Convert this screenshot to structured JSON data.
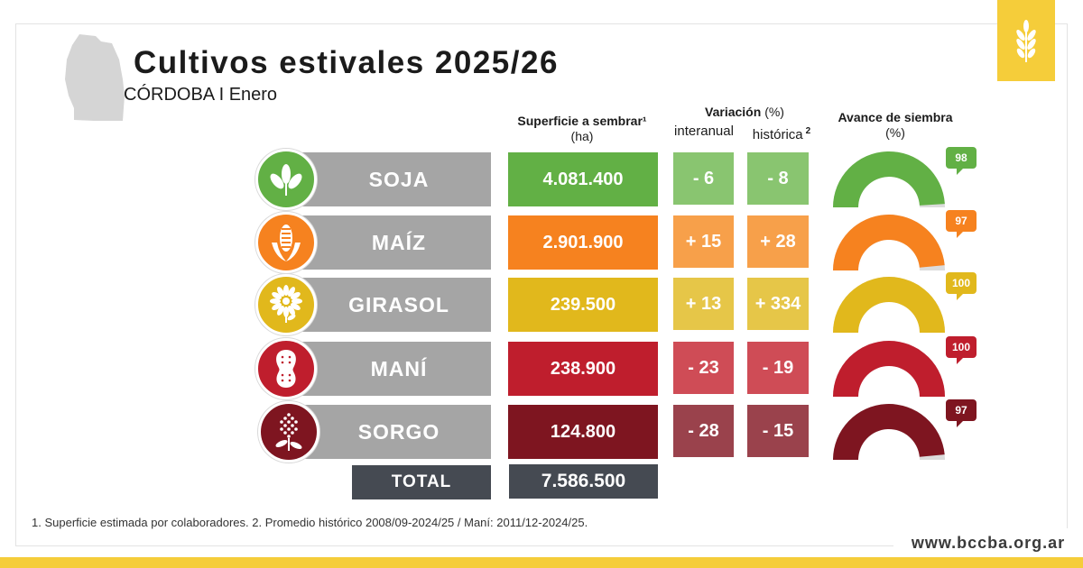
{
  "header": {
    "title": "Cultivos estivales 2025/26",
    "subtitle": "CÓRDOBA I Enero"
  },
  "columns": {
    "area_title": "Superficie a sembrar¹",
    "area_unit": "(ha)",
    "variation_title": "Variación",
    "variation_unit": "(%)",
    "interanual": "interanual",
    "historica": "histórica",
    "historica_sup": "2",
    "progress_title": "Avance de siembra",
    "progress_unit": "(%)"
  },
  "crops": [
    {
      "name": "SOJA",
      "icon": "soy-plant-icon",
      "area": "4.081.400",
      "var_interanual": "- 6",
      "var_historica": "- 8",
      "progress": "98",
      "progress_value": 98,
      "color": "#62b045",
      "label_color": "#a5a5a5",
      "var_color": "#89c570"
    },
    {
      "name": "MAÍZ",
      "icon": "corn-icon",
      "area": "2.901.900",
      "var_interanual": "+ 15",
      "var_historica": "+ 28",
      "progress": "97",
      "progress_value": 97,
      "color": "#f6821f",
      "label_color": "#a5a5a5",
      "var_color": "#f7a04a"
    },
    {
      "name": "GIRASOL",
      "icon": "sunflower-icon",
      "area": "239.500",
      "var_interanual": "+ 13",
      "var_historica": "+ 334",
      "progress": "100",
      "progress_value": 100,
      "color": "#e1b81c",
      "label_color": "#a5a5a5",
      "var_color": "#e6c648"
    },
    {
      "name": "MANÍ",
      "icon": "peanut-icon",
      "area": "238.900",
      "var_interanual": "- 23",
      "var_historica": "- 19",
      "progress": "100",
      "progress_value": 100,
      "color": "#bf1e2d",
      "label_color": "#a5a5a5",
      "var_color": "#cf4c56"
    },
    {
      "name": "SORGO",
      "icon": "sorghum-icon",
      "area": "124.800",
      "var_interanual": "- 28",
      "var_historica": "- 15",
      "progress": "97",
      "progress_value": 97,
      "color": "#7e1520",
      "label_color": "#a5a5a5",
      "var_color": "#9a424c"
    }
  ],
  "total": {
    "label": "TOTAL",
    "value": "7.586.500"
  },
  "footnote": "1. Superficie estimada por colaboradores. 2. Promedio histórico 2008/09-2024/25 / Maní: 2011/12-2024/25.",
  "website": "www.bccba.org.ar",
  "logo_icon": "wheat-icon",
  "map_icon": "cordoba-map-icon",
  "colors": {
    "brand_yellow": "#f5cd3a",
    "total_bg": "#454a52",
    "label_gray": "#a5a5a5"
  }
}
